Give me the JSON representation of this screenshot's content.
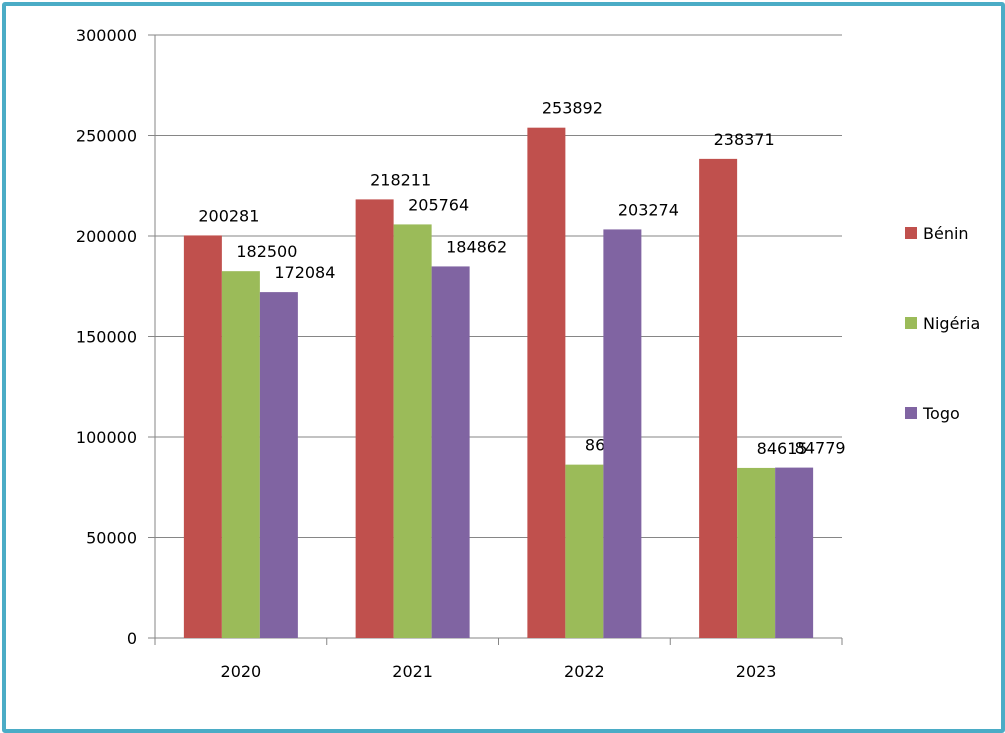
{
  "chart_data": {
    "type": "bar",
    "categories": [
      "2020",
      "2021",
      "2022",
      "2023"
    ],
    "series": [
      {
        "name": "Bénin",
        "color": "#c0504d",
        "values": [
          200281,
          218211,
          253892,
          238371
        ]
      },
      {
        "name": "Nigéria",
        "color": "#9bbb59",
        "values": [
          182500,
          205764,
          86247,
          84615
        ]
      },
      {
        "name": "Togo",
        "color": "#8064a2",
        "values": [
          172084,
          184862,
          203274,
          84779
        ]
      }
    ],
    "ylim": [
      0,
      300000
    ],
    "yticks": [
      "0",
      "50000",
      "100000",
      "150000",
      "200000",
      "250000",
      "300000"
    ],
    "grid": true,
    "legend": "right",
    "data_labels": true,
    "frame_color": "#4bacc6"
  }
}
